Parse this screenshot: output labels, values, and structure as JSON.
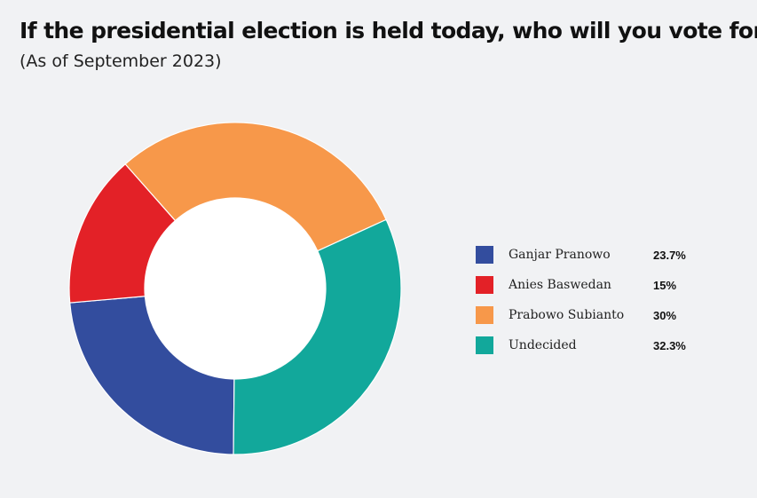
{
  "chart_data": {
    "type": "pie",
    "title": "If the presidential election is held today, who will you vote for?",
    "subtitle": "(As of September 2023)",
    "donut": true,
    "legend_position": "right",
    "categories": [
      "Ganjar Pranowo",
      "Anies Baswedan",
      "Prabowo Subianto",
      "Undecided"
    ],
    "values": [
      23.7,
      15,
      30,
      32.3
    ],
    "value_labels": [
      "23.7%",
      "15%",
      "30%",
      "32.3%"
    ],
    "colors": [
      "#334d9e",
      "#e32127",
      "#f7984a",
      "#12a89b"
    ]
  }
}
